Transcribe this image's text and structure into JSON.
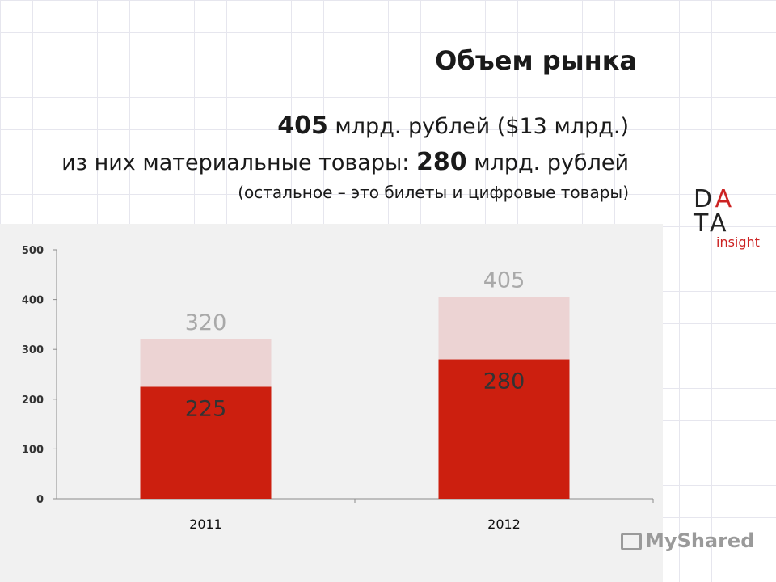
{
  "header": {
    "title": "Объем рынка",
    "line1_value": "405",
    "line1_text": " млрд. рублей ($13 млрд.)",
    "line2_prefix": "из них материальные товары: ",
    "line2_value": "280",
    "line2_suffix": " млрд. рублей",
    "line3": "(остальное – это билеты и цифровые товары)"
  },
  "logo": {
    "row1_a": "D",
    "row1_b": "A",
    "row2_a": "T",
    "row2_b": "A",
    "subtitle": "insight"
  },
  "watermark": {
    "text": "MyShared"
  },
  "colors": {
    "material": "#cc1f0f",
    "other": "#ecd3d3",
    "total_label": "#a9a9a9",
    "inner_label": "#333333"
  },
  "chart_data": {
    "type": "bar",
    "stacked": true,
    "categories": [
      "2011",
      "2012"
    ],
    "series": [
      {
        "values": [
          225,
          280
        ]
      },
      {
        "values": [
          95,
          125
        ]
      }
    ],
    "totals": [
      320,
      405
    ],
    "ylim": [
      0,
      500
    ],
    "yticks": [
      0,
      100,
      200,
      300,
      400,
      500
    ],
    "title": "",
    "xlabel": "",
    "ylabel": "",
    "grid": false
  }
}
